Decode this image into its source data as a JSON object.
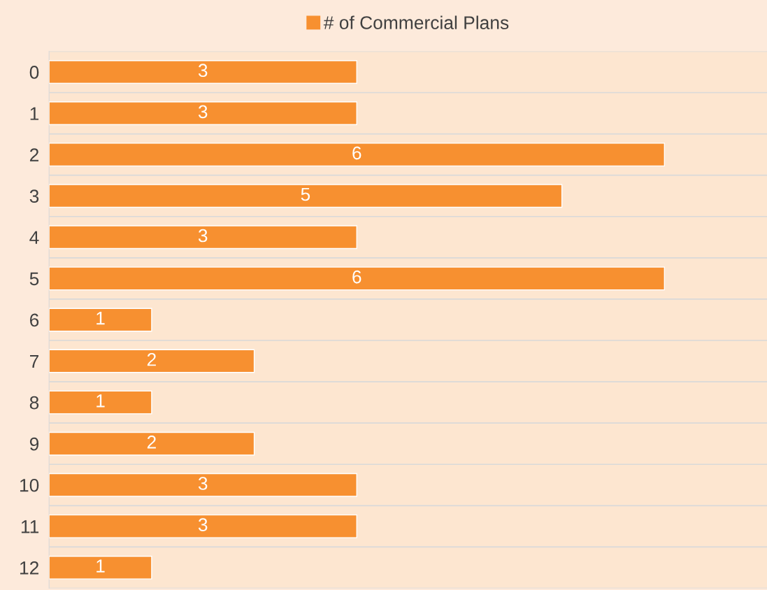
{
  "chart_data": {
    "type": "bar",
    "orientation": "horizontal",
    "categories": [
      "0",
      "1",
      "2",
      "3",
      "4",
      "5",
      "6",
      "7",
      "8",
      "9",
      "10",
      "11",
      "12"
    ],
    "series": [
      {
        "name": "# of Commercial Plans",
        "color": "#f79030",
        "values": [
          3,
          3,
          6,
          5,
          3,
          6,
          1,
          2,
          1,
          2,
          3,
          3,
          1
        ]
      }
    ],
    "xlim": [
      0,
      7
    ],
    "tick_labels": "y",
    "data_labels": true,
    "grid": "y",
    "legend": "top"
  }
}
